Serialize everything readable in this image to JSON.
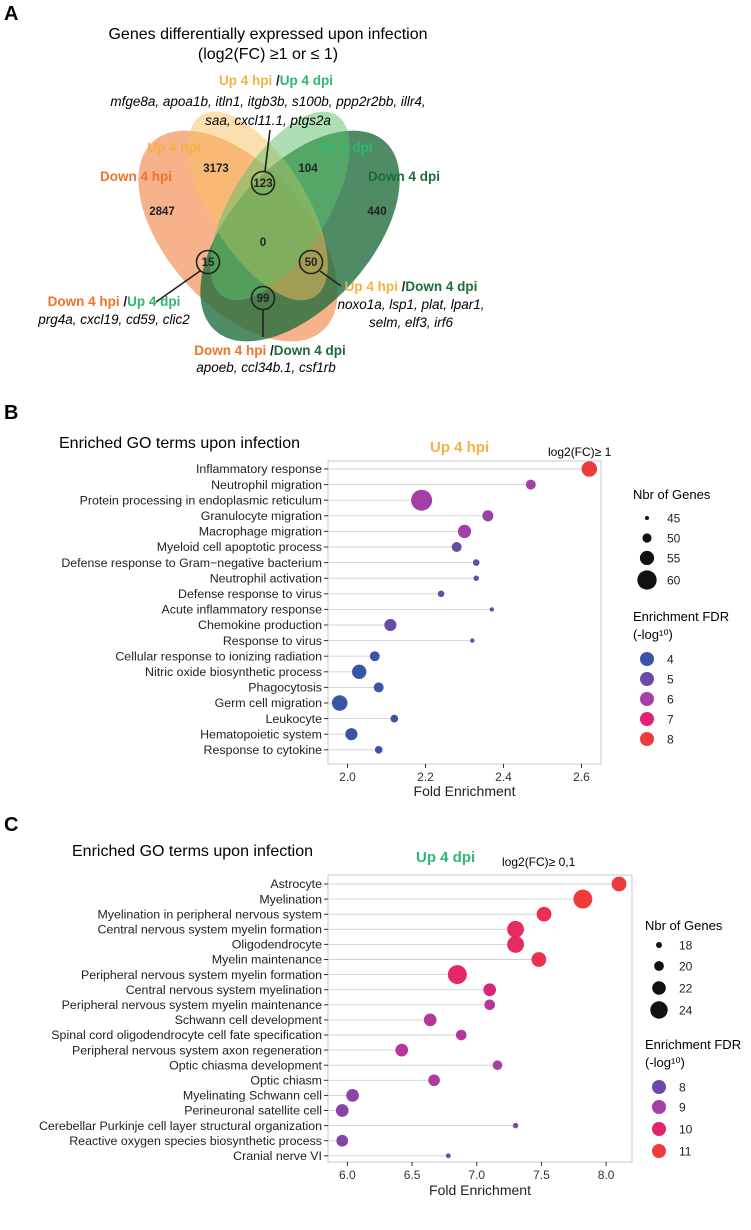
{
  "venn": {
    "panel_letter": "A",
    "title_line1": "Genes differentially expressed upon infection",
    "title_line2": "(log2(FC) ≥1 or ≤ 1)",
    "sets": {
      "up4hpi": {
        "label": "Up 4 hpi",
        "color": "#f5b041"
      },
      "down4hpi": {
        "label": "Down 4 hpi",
        "color": "#f0722c"
      },
      "up4dpi": {
        "label": "Up 4 dpi",
        "color": "#2eb872"
      },
      "down4dpi": {
        "label": "Down 4 dpi",
        "color": "#1e6b3a"
      }
    },
    "counts": {
      "up4hpi_only": "3173",
      "up4dpi_only": "104",
      "down4hpi_only": "2847",
      "down4dpi_only": "440",
      "up4hpi_up4dpi": "123",
      "center": "0",
      "down4hpi_up4dpi": "15",
      "up4hpi_down4dpi": "50",
      "down4hpi_down4dpi": "99"
    },
    "callouts": {
      "top": {
        "label_a": "Up 4 hpi",
        "sep": " /",
        "label_b": "Up 4 dpi",
        "genes1": "mfge8a, apoa1b, itln1, itgb3b, s100b, ppp2r2bb, illr4,",
        "genes2": "saa, cxcl11.1, ptgs2a"
      },
      "left": {
        "label_a": "Down 4 hpi",
        "sep": " /",
        "label_b": "Up 4 dpi",
        "genes1": "prg4a, cxcl19, cd59, clic2"
      },
      "right": {
        "label_a": "Up 4 hpi",
        "sep": " /",
        "label_b": "Down 4 dpi",
        "genes1": "noxo1a, lsp1, plat, lpar1,",
        "genes2": "selm, elf3, irf6"
      },
      "bottom": {
        "label_a": "Down 4 hpi",
        "sep": " /",
        "label_b": "Down 4 dpi",
        "genes1": "apoeb, ccl34b.1, csf1rb"
      }
    }
  },
  "panelB": {
    "panel_letter": "B",
    "title": "Enriched GO terms upon infection",
    "condition": "Up 4 hpi",
    "condition_color": "#f5b041",
    "threshold": "log2(FC)≥ 1",
    "size_legend_title": "Nbr of Genes",
    "color_legend_title1": "Enrichment FDR",
    "color_legend_title2": "(-log¹⁰)",
    "size_legend": [
      {
        "label": "45",
        "value": 45
      },
      {
        "label": "50",
        "value": 50
      },
      {
        "label": "55",
        "value": 55
      },
      {
        "label": "60",
        "value": 60
      }
    ],
    "color_legend": [
      {
        "label": "4",
        "color": "#3a55a5"
      },
      {
        "label": "5",
        "color": "#6a4aa8"
      },
      {
        "label": "6",
        "color": "#a43fa8"
      },
      {
        "label": "7",
        "color": "#e3226f"
      },
      {
        "label": "8",
        "color": "#ef3b3b"
      }
    ]
  },
  "panelC": {
    "panel_letter": "C",
    "title": "Enriched GO terms upon infection",
    "condition": "Up 4 dpi",
    "condition_color": "#2eb872",
    "threshold": "log2(FC)≥ 0,1",
    "size_legend_title": "Nbr of Genes",
    "color_legend_title1": "Enrichment FDR",
    "color_legend_title2": "(-log¹⁰)",
    "size_legend": [
      {
        "label": "18",
        "value": 18
      },
      {
        "label": "20",
        "value": 20
      },
      {
        "label": "22",
        "value": 22
      },
      {
        "label": "24",
        "value": 24
      }
    ],
    "color_legend": [
      {
        "label": "8",
        "color": "#6a4aa8"
      },
      {
        "label": "9",
        "color": "#a43fa8"
      },
      {
        "label": "10",
        "color": "#e3226f"
      },
      {
        "label": "11",
        "color": "#ef3b3b"
      }
    ]
  },
  "chart_data": [
    {
      "type": "scatter",
      "title": "Enriched GO terms upon infection",
      "xlabel": "Fold Enrichment",
      "ylabel": "",
      "xlim": [
        1.95,
        2.65
      ],
      "xticks": [
        2.0,
        2.2,
        2.4,
        2.6
      ],
      "xtick_labels": [
        "2.0",
        "2.2",
        "2.4",
        "2.6"
      ],
      "size_range": [
        45,
        60
      ],
      "color_range": [
        4,
        8
      ],
      "grid": true,
      "points": [
        {
          "term": "Inflammatory response",
          "fold": 2.62,
          "genes": 55,
          "fdr": 8.0
        },
        {
          "term": "Neutrophil migration",
          "fold": 2.47,
          "genes": 50,
          "fdr": 6.0
        },
        {
          "term": "Protein processing in endoplasmic reticulum",
          "fold": 2.19,
          "genes": 61,
          "fdr": 6.0
        },
        {
          "term": "Granulocyte migration",
          "fold": 2.36,
          "genes": 51,
          "fdr": 5.8
        },
        {
          "term": "Macrophage migration",
          "fold": 2.3,
          "genes": 53,
          "fdr": 6.0
        },
        {
          "term": "Myeloid cell apoptotic process",
          "fold": 2.28,
          "genes": 50,
          "fdr": 5.0
        },
        {
          "term": "Defense response to Gram−negative bacterium",
          "fold": 2.33,
          "genes": 47,
          "fdr": 5.0
        },
        {
          "term": "Neutrophil activation",
          "fold": 2.33,
          "genes": 46,
          "fdr": 5.0
        },
        {
          "term": "Defense response to virus",
          "fold": 2.24,
          "genes": 47,
          "fdr": 5.0
        },
        {
          "term": "Acute inflammatory response",
          "fold": 2.37,
          "genes": 43,
          "fdr": 5.0
        },
        {
          "term": "Chemokine production",
          "fold": 2.11,
          "genes": 52,
          "fdr": 5.0
        },
        {
          "term": "Response to virus",
          "fold": 2.32,
          "genes": 43,
          "fdr": 5.0
        },
        {
          "term": "Cellular response to ionizing radiation",
          "fold": 2.07,
          "genes": 50,
          "fdr": 4.0
        },
        {
          "term": "Nitric oxide biosynthetic process",
          "fold": 2.03,
          "genes": 54,
          "fdr": 4.0
        },
        {
          "term": "Phagocytosis",
          "fold": 2.08,
          "genes": 50,
          "fdr": 4.0
        },
        {
          "term": "Germ cell migration",
          "fold": 1.98,
          "genes": 55,
          "fdr": 4.0
        },
        {
          "term": "Leukocyte",
          "fold": 2.12,
          "genes": 48,
          "fdr": 4.0
        },
        {
          "term": "Hematopoietic system",
          "fold": 2.01,
          "genes": 52,
          "fdr": 4.0
        },
        {
          "term": "Response to cytokine",
          "fold": 2.08,
          "genes": 48,
          "fdr": 4.0
        }
      ]
    },
    {
      "type": "scatter",
      "title": "Enriched GO terms upon infection",
      "xlabel": "Fold Enrichment",
      "ylabel": "",
      "xlim": [
        5.85,
        8.2
      ],
      "xticks": [
        6.0,
        6.5,
        7.0,
        7.5,
        8.0
      ],
      "xtick_labels": [
        "6.0",
        "6.5",
        "7.0",
        "7.5",
        "8.0"
      ],
      "size_range": [
        17,
        25
      ],
      "color_range": [
        7.5,
        11
      ],
      "grid": true,
      "points": [
        {
          "term": "Astrocyte",
          "fold": 8.1,
          "genes": 22,
          "fdr": 11.0
        },
        {
          "term": "Myelination",
          "fold": 7.82,
          "genes": 24,
          "fdr": 11.0
        },
        {
          "term": "Myelination in peripheral nervous system",
          "fold": 7.52,
          "genes": 22,
          "fdr": 10.5
        },
        {
          "term": "Central nervous system myelin formation",
          "fold": 7.3,
          "genes": 23,
          "fdr": 10.2
        },
        {
          "term": "Oligodendrocyte",
          "fold": 7.3,
          "genes": 23,
          "fdr": 10.2
        },
        {
          "term": "Myelin maintenance",
          "fold": 7.48,
          "genes": 22,
          "fdr": 10.6
        },
        {
          "term": "Peripheral nervous system myelin formation",
          "fold": 6.85,
          "genes": 24,
          "fdr": 10.0
        },
        {
          "term": "Central nervous system myelination",
          "fold": 7.1,
          "genes": 21,
          "fdr": 9.6
        },
        {
          "term": "Peripheral nervous system myelin maintenance",
          "fold": 7.1,
          "genes": 20,
          "fdr": 9.0
        },
        {
          "term": "Schwann cell development",
          "fold": 6.64,
          "genes": 21,
          "fdr": 9.0
        },
        {
          "term": "Spinal cord oligodendrocyte cell fate specification",
          "fold": 6.88,
          "genes": 20,
          "fdr": 9.0
        },
        {
          "term": "Peripheral nervous system axon regeneration",
          "fold": 6.42,
          "genes": 21,
          "fdr": 9.0
        },
        {
          "term": "Optic chiasma development",
          "fold": 7.16,
          "genes": 19.5,
          "fdr": 8.8
        },
        {
          "term": "Optic chiasm",
          "fold": 6.67,
          "genes": 20.5,
          "fdr": 8.8
        },
        {
          "term": "Myelinating Schwann cell",
          "fold": 6.04,
          "genes": 21,
          "fdr": 8.2
        },
        {
          "term": "Perineuronal satellite cell",
          "fold": 5.96,
          "genes": 21,
          "fdr": 8.0
        },
        {
          "term": "Cerebellar Purkinje cell layer structural organization",
          "fold": 7.3,
          "genes": 17.5,
          "fdr": 8.0
        },
        {
          "term": "Reactive oxygen species biosynthetic process",
          "fold": 5.96,
          "genes": 20.5,
          "fdr": 8.0
        },
        {
          "term": "Cranial nerve VI",
          "fold": 6.78,
          "genes": 17.2,
          "fdr": 7.6
        }
      ]
    }
  ]
}
